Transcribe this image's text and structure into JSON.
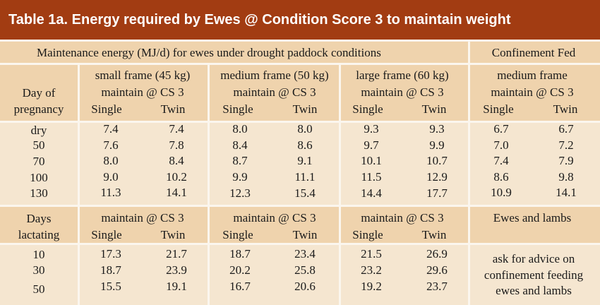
{
  "title": "Table 1a.   Energy required by Ewes @ Condition Score 3 to maintain weight",
  "colors": {
    "title_bg": "#a23c12",
    "band": "#efd3ad",
    "body": "#f5e6d0",
    "rule": "#fbf6ee"
  },
  "header": {
    "maintenance": "Maintenance energy (MJ/d) for ewes under drought  paddock conditions",
    "confinement": "Confinement Fed",
    "day_of": "Day of",
    "pregnancy": "pregnancy",
    "small_frame": "small frame (45 kg)",
    "medium_frame": "medium frame (50 kg)",
    "large_frame": "large frame (60 kg)",
    "medium_frame_conf": "medium frame",
    "maintain": "maintain @ CS 3",
    "single": "Single",
    "twin": "Twin"
  },
  "pregnancy_rows": [
    {
      "day": "dry",
      "small": [
        "7.4",
        "7.4"
      ],
      "medium": [
        "8.0",
        "8.0"
      ],
      "large": [
        "9.3",
        "9.3"
      ],
      "conf": [
        "6.7",
        "6.7"
      ]
    },
    {
      "day": "50",
      "small": [
        "7.6",
        "7.8"
      ],
      "medium": [
        "8.4",
        "8.6"
      ],
      "large": [
        "9.7",
        "9.9"
      ],
      "conf": [
        "7.0",
        "7.2"
      ]
    },
    {
      "day": "70",
      "small": [
        "8.0",
        "8.4"
      ],
      "medium": [
        "8.7",
        "9.1"
      ],
      "large": [
        "10.1",
        "10.7"
      ],
      "conf": [
        "7.4",
        "7.9"
      ]
    },
    {
      "day": "100",
      "small": [
        "9.0",
        "10.2"
      ],
      "medium": [
        "9.9",
        "11.1"
      ],
      "large": [
        "11.5",
        "12.9"
      ],
      "conf": [
        "8.6",
        "9.8"
      ]
    },
    {
      "day": "130",
      "small": [
        "11.3",
        "14.1"
      ],
      "medium": [
        "12.3",
        "15.4"
      ],
      "large": [
        "14.4",
        "17.7"
      ],
      "conf": [
        "10.9",
        "14.1"
      ]
    }
  ],
  "lactation_header": {
    "days": "Days",
    "lactating": "lactating",
    "maintain": "maintain @ CS 3",
    "single": "Single",
    "twin": "Twin",
    "ewes_lambs": "Ewes and lambs"
  },
  "lactation_rows": [
    {
      "day": "10",
      "small": [
        "17.3",
        "21.7"
      ],
      "medium": [
        "18.7",
        "23.4"
      ],
      "large": [
        "21.5",
        "26.9"
      ]
    },
    {
      "day": "30",
      "small": [
        "18.7",
        "23.9"
      ],
      "medium": [
        "20.2",
        "25.8"
      ],
      "large": [
        "23.2",
        "29.6"
      ]
    },
    {
      "day": "50",
      "small": [
        "15.5",
        "19.1"
      ],
      "medium": [
        "16.7",
        "20.6"
      ],
      "large": [
        "19.2",
        "23.7"
      ]
    }
  ],
  "advice": [
    "ask for advice on",
    "confinement feeding",
    "ewes and lambs"
  ]
}
